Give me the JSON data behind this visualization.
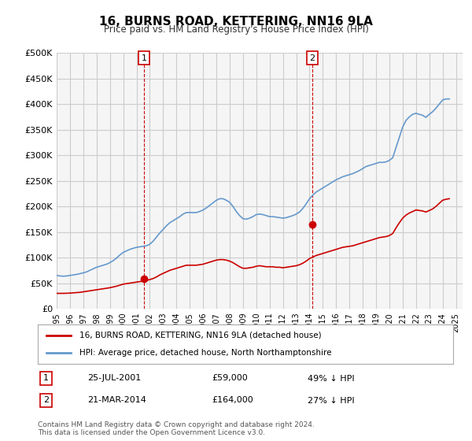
{
  "title": "16, BURNS ROAD, KETTERING, NN16 9LA",
  "subtitle": "Price paid vs. HM Land Registry's House Price Index (HPI)",
  "ylabel_ticks": [
    0,
    50000,
    100000,
    150000,
    200000,
    250000,
    300000,
    350000,
    400000,
    450000,
    500000
  ],
  "ylabel_labels": [
    "£0",
    "£50K",
    "£100K",
    "£150K",
    "£200K",
    "£250K",
    "£300K",
    "£350K",
    "£400K",
    "£450K",
    "£500K"
  ],
  "ylim": [
    0,
    500000
  ],
  "xlim_start": 1995.0,
  "xlim_end": 2025.5,
  "sale1_date_num": 2001.56,
  "sale1_price": 59000,
  "sale1_label": "1",
  "sale2_date_num": 2014.22,
  "sale2_price": 164000,
  "sale2_label": "2",
  "red_line_color": "#cc0000",
  "blue_line_color": "#6699cc",
  "vline_color": "#cc0000",
  "grid_color": "#cccccc",
  "bg_color": "#ffffff",
  "plot_bg_color": "#f5f5f5",
  "legend_label_red": "16, BURNS ROAD, KETTERING, NN16 9LA (detached house)",
  "legend_label_blue": "HPI: Average price, detached house, North Northamptonshire",
  "annot1_num": "1",
  "annot1_date": "25-JUL-2001",
  "annot1_price": "£59,000",
  "annot1_hpi": "49% ↓ HPI",
  "annot2_num": "2",
  "annot2_date": "21-MAR-2014",
  "annot2_price": "£164,000",
  "annot2_hpi": "27% ↓ HPI",
  "footer": "Contains HM Land Registry data © Crown copyright and database right 2024.\nThis data is licensed under the Open Government Licence v3.0.",
  "hpi_years": [
    1995.0,
    1995.25,
    1995.5,
    1995.75,
    1996.0,
    1996.25,
    1996.5,
    1996.75,
    1997.0,
    1997.25,
    1997.5,
    1997.75,
    1998.0,
    1998.25,
    1998.5,
    1998.75,
    1999.0,
    1999.25,
    1999.5,
    1999.75,
    2000.0,
    2000.25,
    2000.5,
    2000.75,
    2001.0,
    2001.25,
    2001.5,
    2001.75,
    2002.0,
    2002.25,
    2002.5,
    2002.75,
    2003.0,
    2003.25,
    2003.5,
    2003.75,
    2004.0,
    2004.25,
    2004.5,
    2004.75,
    2005.0,
    2005.25,
    2005.5,
    2005.75,
    2006.0,
    2006.25,
    2006.5,
    2006.75,
    2007.0,
    2007.25,
    2007.5,
    2007.75,
    2008.0,
    2008.25,
    2008.5,
    2008.75,
    2009.0,
    2009.25,
    2009.5,
    2009.75,
    2010.0,
    2010.25,
    2010.5,
    2010.75,
    2011.0,
    2011.25,
    2011.5,
    2011.75,
    2012.0,
    2012.25,
    2012.5,
    2012.75,
    2013.0,
    2013.25,
    2013.5,
    2013.75,
    2014.0,
    2014.25,
    2014.5,
    2014.75,
    2015.0,
    2015.25,
    2015.5,
    2015.75,
    2016.0,
    2016.25,
    2016.5,
    2016.75,
    2017.0,
    2017.25,
    2017.5,
    2017.75,
    2018.0,
    2018.25,
    2018.5,
    2018.75,
    2019.0,
    2019.25,
    2019.5,
    2019.75,
    2020.0,
    2020.25,
    2020.5,
    2020.75,
    2021.0,
    2021.25,
    2021.5,
    2021.75,
    2022.0,
    2022.25,
    2022.5,
    2022.75,
    2023.0,
    2023.25,
    2023.5,
    2023.75,
    2024.0,
    2024.25,
    2024.5
  ],
  "hpi_values": [
    65000,
    64000,
    63500,
    64000,
    65000,
    66000,
    67000,
    68500,
    70000,
    72000,
    75000,
    78000,
    81000,
    83000,
    85000,
    87000,
    90000,
    94000,
    99000,
    105000,
    110000,
    113000,
    116000,
    118000,
    120000,
    121000,
    122000,
    123000,
    126000,
    132000,
    140000,
    148000,
    155000,
    162000,
    168000,
    172000,
    176000,
    180000,
    185000,
    188000,
    188000,
    188000,
    188000,
    190000,
    193000,
    197000,
    202000,
    207000,
    212000,
    215000,
    215000,
    212000,
    208000,
    200000,
    190000,
    182000,
    176000,
    175000,
    177000,
    180000,
    184000,
    185000,
    184000,
    182000,
    180000,
    180000,
    179000,
    178000,
    177000,
    178000,
    180000,
    182000,
    185000,
    189000,
    196000,
    205000,
    215000,
    222000,
    228000,
    232000,
    236000,
    240000,
    244000,
    248000,
    252000,
    255000,
    258000,
    260000,
    262000,
    264000,
    267000,
    270000,
    274000,
    278000,
    280000,
    282000,
    284000,
    286000,
    286000,
    287000,
    290000,
    295000,
    315000,
    335000,
    355000,
    368000,
    375000,
    380000,
    382000,
    380000,
    378000,
    374000,
    380000,
    385000,
    392000,
    400000,
    408000,
    410000,
    410000
  ],
  "red_years": [
    1995.0,
    1995.25,
    1995.5,
    1995.75,
    1996.0,
    1996.25,
    1996.5,
    1996.75,
    1997.0,
    1997.25,
    1997.5,
    1997.75,
    1998.0,
    1998.25,
    1998.5,
    1998.75,
    1999.0,
    1999.25,
    1999.5,
    1999.75,
    2000.0,
    2000.25,
    2000.5,
    2000.75,
    2001.0,
    2001.25,
    2001.5,
    2001.75,
    2002.0,
    2002.25,
    2002.5,
    2002.75,
    2003.0,
    2003.25,
    2003.5,
    2003.75,
    2004.0,
    2004.25,
    2004.5,
    2004.75,
    2005.0,
    2005.25,
    2005.5,
    2005.75,
    2006.0,
    2006.25,
    2006.5,
    2006.75,
    2007.0,
    2007.25,
    2007.5,
    2007.75,
    2008.0,
    2008.25,
    2008.5,
    2008.75,
    2009.0,
    2009.25,
    2009.5,
    2009.75,
    2010.0,
    2010.25,
    2010.5,
    2010.75,
    2011.0,
    2011.25,
    2011.5,
    2011.75,
    2012.0,
    2012.25,
    2012.5,
    2012.75,
    2013.0,
    2013.25,
    2013.5,
    2013.75,
    2014.0,
    2014.25,
    2014.5,
    2014.75,
    2015.0,
    2015.25,
    2015.5,
    2015.75,
    2016.0,
    2016.25,
    2016.5,
    2016.75,
    2017.0,
    2017.25,
    2017.5,
    2017.75,
    2018.0,
    2018.25,
    2018.5,
    2018.75,
    2019.0,
    2019.25,
    2019.5,
    2019.75,
    2020.0,
    2020.25,
    2020.5,
    2020.75,
    2021.0,
    2021.25,
    2021.5,
    2021.75,
    2022.0,
    2022.25,
    2022.5,
    2022.75,
    2023.0,
    2023.25,
    2023.5,
    2023.75,
    2024.0,
    2024.25,
    2024.5
  ],
  "red_values": [
    30000,
    30000,
    30000,
    30200,
    30500,
    31000,
    31500,
    32000,
    33000,
    34000,
    35000,
    36000,
    37000,
    38000,
    39000,
    40000,
    41000,
    42500,
    44000,
    46000,
    48000,
    49000,
    50000,
    51000,
    52000,
    53000,
    54000,
    55000,
    57000,
    59000,
    62000,
    66000,
    69000,
    72000,
    75000,
    77000,
    79000,
    81000,
    83000,
    85000,
    85000,
    85000,
    85000,
    86000,
    87000,
    89000,
    91000,
    93000,
    95000,
    96000,
    96000,
    95000,
    93000,
    90000,
    86000,
    82000,
    79000,
    79000,
    80000,
    81000,
    83000,
    84000,
    83000,
    82000,
    82000,
    82000,
    81000,
    81000,
    80000,
    81000,
    82000,
    83000,
    84000,
    86000,
    89000,
    93000,
    98000,
    101000,
    104000,
    106000,
    108000,
    110000,
    112000,
    114000,
    116000,
    118000,
    120000,
    121000,
    122000,
    123000,
    125000,
    127000,
    129000,
    131000,
    133000,
    135000,
    137000,
    139000,
    140000,
    141000,
    143000,
    147000,
    158000,
    168000,
    177000,
    183000,
    187000,
    190000,
    193000,
    192000,
    191000,
    189000,
    192000,
    195000,
    200000,
    206000,
    212000,
    214000,
    215000
  ]
}
